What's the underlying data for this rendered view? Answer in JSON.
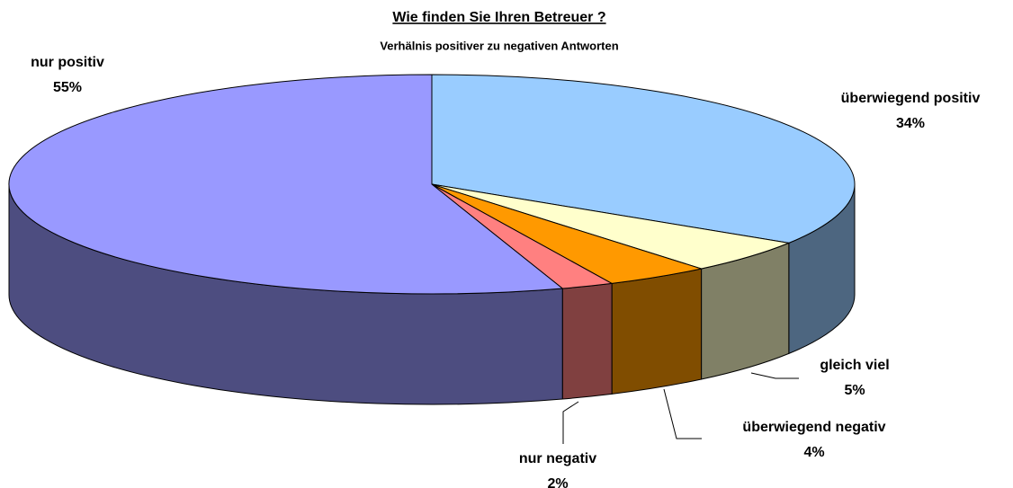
{
  "chart_data": {
    "type": "pie3d",
    "title": "Wie finden Sie Ihren Betreuer ?",
    "subtitle": "Verhälnis positiver zu negativen Antworten",
    "categories": [
      "überwiegend positiv",
      "gleich viel",
      "überwiegend negativ",
      "nur negativ",
      "nur positiv"
    ],
    "values": [
      34,
      5,
      4,
      2,
      55
    ],
    "value_labels": [
      "34%",
      "5%",
      "4%",
      "2%",
      "55%"
    ],
    "colors": [
      "#99ccff",
      "#ffffcc",
      "#ff9900",
      "#ff8080",
      "#9999ff"
    ]
  }
}
